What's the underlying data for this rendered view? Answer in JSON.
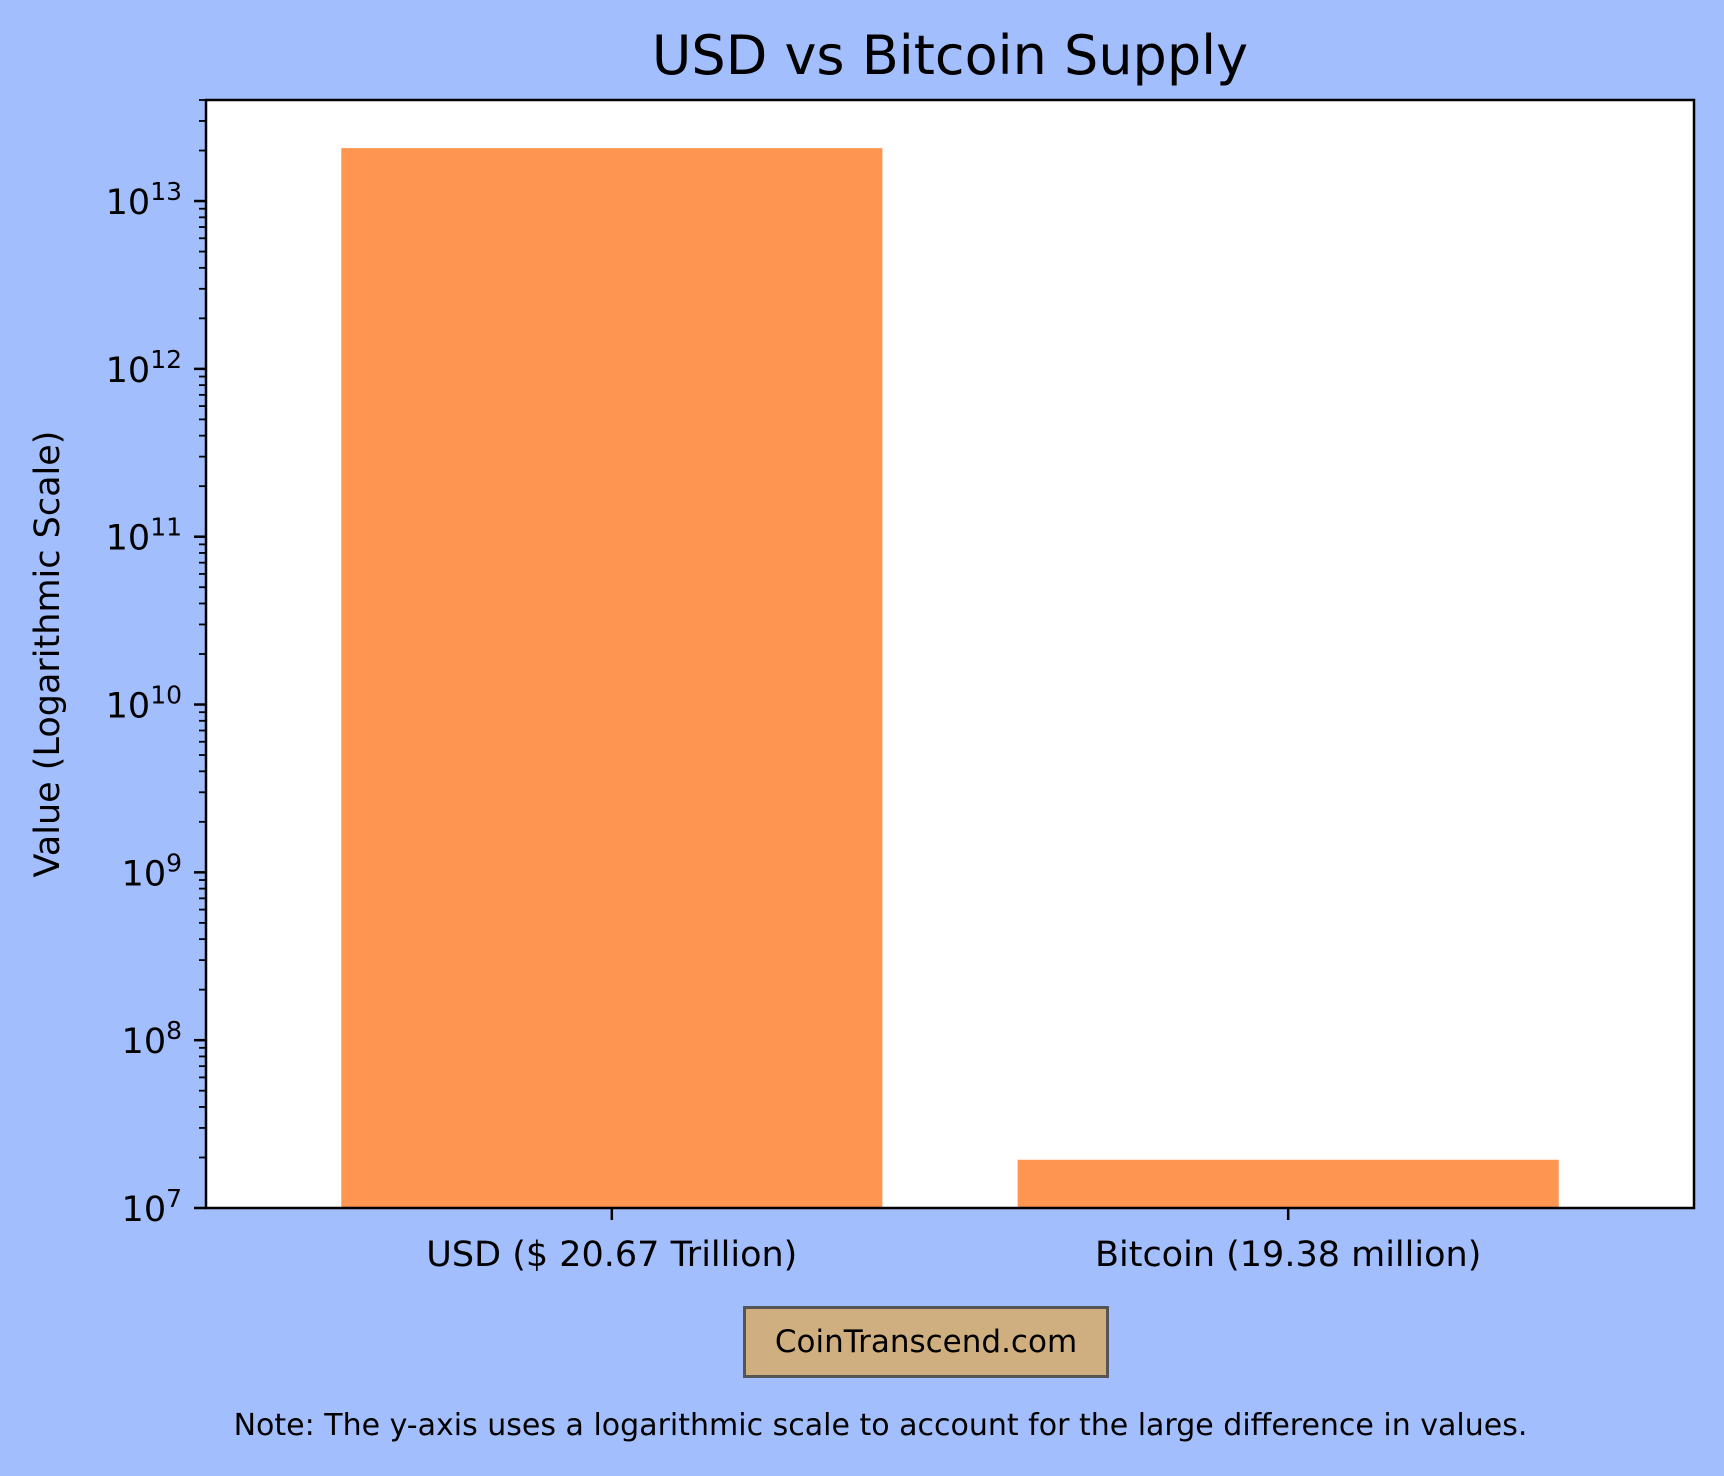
{
  "chart_data": {
    "type": "bar",
    "title": "USD vs Bitcoin Supply",
    "xlabel": "",
    "ylabel": "Value (Logarithmic Scale)",
    "yscale": "log",
    "ylim": [
      10000000,
      40000000000000
    ],
    "yticks": [
      {
        "value": 10000000,
        "base": "10",
        "exp": "7"
      },
      {
        "value": 100000000,
        "base": "10",
        "exp": "8"
      },
      {
        "value": 1000000000,
        "base": "10",
        "exp": "9"
      },
      {
        "value": 10000000000,
        "base": "10",
        "exp": "10"
      },
      {
        "value": 100000000000,
        "base": "10",
        "exp": "11"
      },
      {
        "value": 1000000000000,
        "base": "10",
        "exp": "12"
      },
      {
        "value": 10000000000000,
        "base": "10",
        "exp": "13"
      }
    ],
    "categories": [
      "USD ($ 20.67 Trillion)",
      "Bitcoin (19.38 million)"
    ],
    "values": [
      20670000000000,
      19380000
    ],
    "bar_color": "#fe9550",
    "grid": false,
    "legend": "none"
  },
  "watermark": "CoinTranscend.com",
  "note": "Note: The y-axis uses a logarithmic scale to account for the large difference in values.",
  "colors": {
    "background": "#a2befc",
    "plot_background": "#ffffff",
    "watermark_box": "#cfaf7f"
  }
}
